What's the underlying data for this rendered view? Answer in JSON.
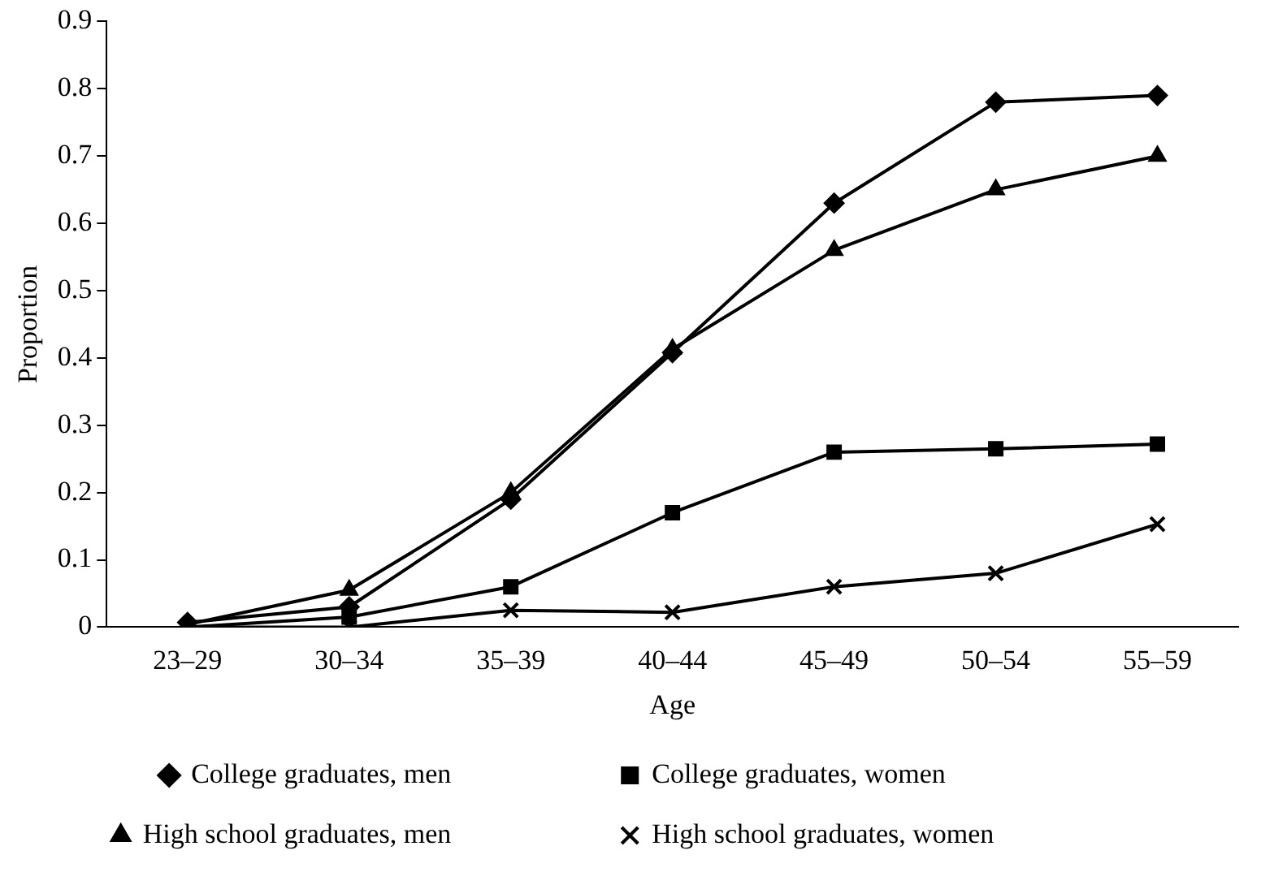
{
  "chart_data": {
    "type": "line",
    "xlabel": "Age",
    "ylabel": "Proportion",
    "categories": [
      "23–29",
      "30–34",
      "35–39",
      "40–44",
      "45–49",
      "50–54",
      "55–59"
    ],
    "ylim": [
      0,
      0.9
    ],
    "yticks": [
      0,
      0.1,
      0.2,
      0.3,
      0.4,
      0.5,
      0.6,
      0.7,
      0.8,
      0.9
    ],
    "grid": false,
    "legend": "bottom",
    "series": [
      {
        "name": "College graduates, men",
        "color": "#000000",
        "marker": "diamond",
        "values": [
          0.007,
          0.03,
          0.19,
          0.408,
          0.63,
          0.78,
          0.79
        ]
      },
      {
        "name": "College graduates, women",
        "color": "#000000",
        "marker": "square",
        "values": [
          0,
          0.015,
          0.06,
          0.17,
          0.26,
          0.265,
          0.272
        ]
      },
      {
        "name": "High school graduates, men",
        "color": "#000000",
        "marker": "triangle",
        "values": [
          0.004,
          0.055,
          0.2,
          0.413,
          0.56,
          0.65,
          0.7
        ]
      },
      {
        "name": "High school graduates, women",
        "color": "#000000",
        "marker": "cross",
        "values": [
          0,
          0,
          0.025,
          0.022,
          0.06,
          0.08,
          0.153
        ]
      }
    ]
  }
}
